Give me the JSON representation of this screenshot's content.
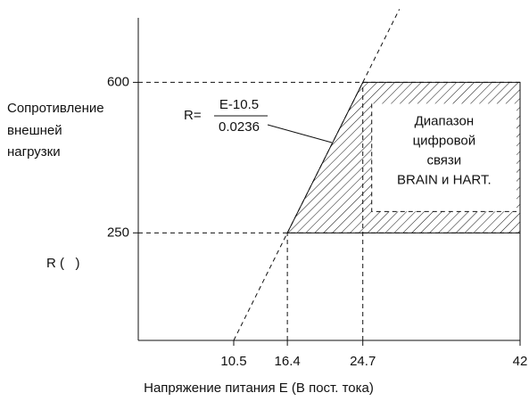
{
  "chart_data": {
    "type": "region",
    "xlabel": "Напряжение питания E (В пост. тока)",
    "ylabel_lines": [
      "Сопротивление",
      "внешней",
      "нагрузки"
    ],
    "yunit": "R (   )",
    "formula": {
      "lhs": "R=",
      "numerator": "E-10.5",
      "denominator": "0.0236"
    },
    "region_label_lines": [
      "Диапазон",
      "цифровой",
      "связи",
      "BRAIN и HART."
    ],
    "line": {
      "x": [
        10.5,
        16.4,
        24.7
      ],
      "values": [
        0,
        250,
        600
      ]
    },
    "region": {
      "x": [
        16.4,
        24.7,
        42,
        42
      ],
      "values": [
        250,
        600,
        600,
        250
      ]
    },
    "xlim": [
      0,
      42
    ],
    "ylim": [
      0,
      750
    ],
    "xticks": [
      10.5,
      16.4,
      24.7,
      42
    ],
    "yticks": [
      250,
      600
    ]
  }
}
